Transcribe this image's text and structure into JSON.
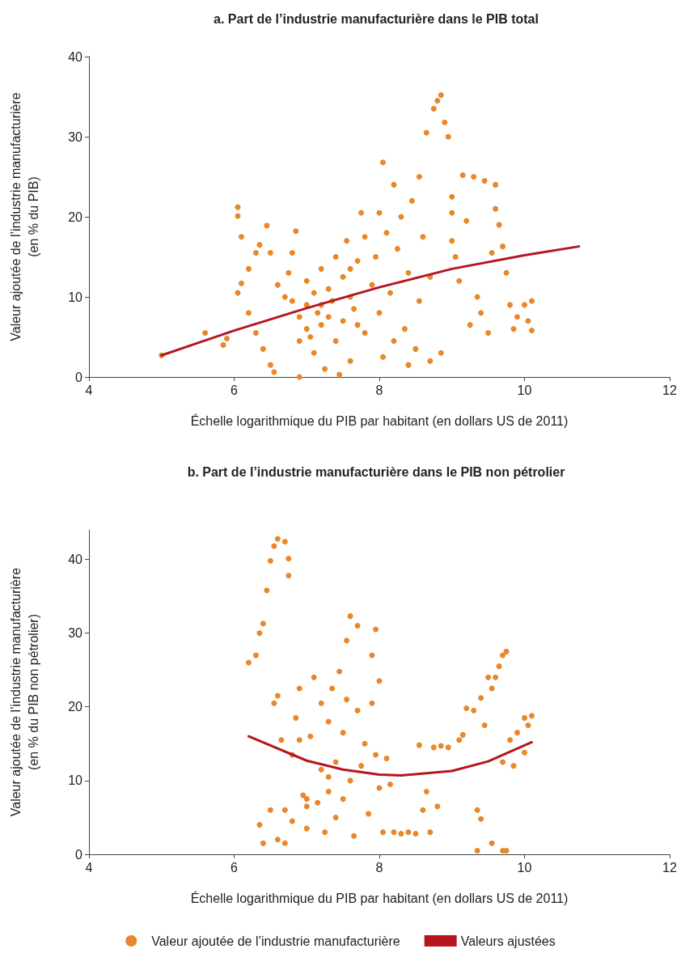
{
  "chart_data": [
    {
      "type": "scatter",
      "title": "a. Part de l’industrie manufacturière dans le PIB total",
      "xlabel": "Échelle logarithmique du PIB par habitant (en dollars US de 2011)",
      "ylabel": "Valeur ajoutée de l’industrie manufacturière\n(en % du PIB)",
      "xlim": [
        4,
        12
      ],
      "xticks": [
        4,
        6,
        8,
        10,
        12
      ],
      "ylim": [
        0,
        40
      ],
      "yticks": [
        0,
        10,
        20,
        30,
        40
      ],
      "grid": false,
      "legend": false,
      "series": [
        {
          "color": "#e8872b",
          "marker": "circle",
          "x": [
            5.0,
            5.6,
            5.85,
            5.9,
            6.05,
            6.05,
            6.1,
            6.05,
            6.1,
            6.2,
            6.3,
            6.35,
            6.45,
            6.5,
            6.2,
            6.3,
            6.4,
            6.5,
            6.55,
            6.6,
            6.7,
            6.75,
            6.8,
            6.85,
            6.9,
            6.9,
            7.0,
            7.0,
            7.05,
            7.1,
            7.1,
            7.15,
            7.2,
            7.2,
            7.25,
            7.3,
            7.35,
            7.4,
            7.4,
            7.45,
            7.5,
            7.5,
            7.55,
            7.6,
            7.6,
            7.65,
            7.7,
            7.75,
            7.8,
            7.8,
            7.9,
            7.95,
            8.0,
            8.0,
            8.05,
            8.1,
            8.15,
            8.2,
            8.25,
            8.3,
            8.35,
            8.4,
            8.45,
            8.5,
            8.55,
            8.55,
            8.6,
            8.65,
            8.7,
            8.75,
            8.8,
            8.85,
            8.9,
            8.95,
            8.7,
            8.85,
            9.0,
            9.0,
            9.05,
            9.1,
            9.15,
            9.2,
            9.3,
            9.35,
            9.4,
            9.45,
            9.5,
            9.55,
            9.6,
            9.6,
            9.65,
            9.7,
            9.75,
            9.8,
            9.85,
            9.9,
            10.0,
            10.05,
            10.1,
            10.1,
            8.05,
            7.2,
            7.3,
            7.0,
            6.8,
            6.9,
            7.6,
            7.7,
            8.2,
            8.4,
            9.25,
            9.0
          ],
          "values": [
            2.7,
            5.5,
            4.0,
            4.8,
            21.2,
            20.1,
            17.5,
            10.5,
            11.7,
            13.5,
            15.5,
            16.5,
            18.9,
            15.5,
            8.0,
            5.5,
            3.5,
            1.5,
            0.6,
            11.5,
            10.0,
            13.0,
            15.5,
            18.2,
            0.0,
            7.5,
            9.0,
            12.0,
            5.0,
            10.5,
            3.0,
            8.0,
            13.5,
            6.5,
            1.0,
            11.0,
            9.5,
            15.0,
            4.5,
            0.3,
            7.0,
            12.5,
            17.0,
            10.0,
            2.0,
            8.5,
            14.5,
            20.5,
            5.5,
            17.5,
            11.5,
            15.0,
            20.5,
            8.0,
            2.5,
            18.0,
            10.5,
            24.0,
            16.0,
            20.0,
            6.0,
            13.0,
            22.0,
            3.5,
            25.0,
            9.5,
            17.5,
            30.5,
            12.5,
            33.5,
            34.5,
            35.2,
            31.8,
            30.0,
            2.0,
            3.0,
            20.5,
            22.5,
            15.0,
            12.0,
            25.2,
            19.5,
            25.0,
            10.0,
            8.0,
            24.5,
            5.5,
            15.5,
            24.0,
            21.0,
            19.0,
            16.3,
            13.0,
            9.0,
            6.0,
            7.5,
            9.0,
            7.0,
            9.5,
            5.8,
            26.8,
            9.0,
            7.5,
            6.0,
            9.5,
            4.5,
            13.5,
            6.5,
            4.5,
            1.5,
            6.5,
            17.0
          ]
        },
        {
          "type": "line",
          "color": "#b5161e",
          "marker": "none",
          "line_style": "solid",
          "x": [
            5.0,
            6.0,
            7.0,
            8.0,
            9.0,
            10.0,
            10.75
          ],
          "values": [
            2.7,
            5.8,
            8.6,
            11.2,
            13.5,
            15.2,
            16.3
          ]
        }
      ]
    },
    {
      "type": "scatter",
      "title": "b. Part de l’industrie manufacturière dans le PIB non pétrolier",
      "xlabel": "Échelle logarithmique du PIB par habitant (en dollars US de 2011)",
      "ylabel": "Valeur ajoutée de l’industrie manufacturière\n(en % du PIB non pétrolier)",
      "xlim": [
        4,
        12
      ],
      "xticks": [
        4,
        6,
        8,
        10,
        12
      ],
      "ylim": [
        0,
        44
      ],
      "yticks": [
        0,
        10,
        20,
        30,
        40
      ],
      "grid": false,
      "legend": "bottom",
      "series": [
        {
          "name": "Valeur ajoutée de l’industrie manufacturière",
          "color": "#e8872b",
          "marker": "circle",
          "x": [
            6.2,
            6.3,
            6.35,
            6.4,
            6.45,
            6.5,
            6.55,
            6.6,
            6.7,
            6.75,
            6.75,
            6.35,
            6.4,
            6.5,
            6.55,
            6.6,
            6.6,
            6.65,
            6.7,
            6.7,
            6.8,
            6.8,
            6.85,
            6.9,
            6.9,
            6.95,
            7.0,
            7.0,
            7.05,
            7.1,
            7.15,
            7.2,
            7.2,
            7.25,
            7.3,
            7.3,
            7.35,
            7.4,
            7.4,
            7.45,
            7.5,
            7.5,
            7.55,
            7.55,
            7.6,
            7.6,
            7.65,
            7.7,
            7.7,
            7.75,
            7.8,
            7.85,
            7.9,
            7.9,
            7.95,
            7.95,
            8.0,
            8.0,
            8.05,
            8.1,
            8.15,
            8.2,
            8.3,
            8.4,
            8.5,
            8.55,
            8.6,
            8.65,
            8.7,
            8.75,
            8.8,
            8.85,
            8.95,
            9.1,
            9.15,
            9.2,
            9.3,
            9.35,
            9.35,
            9.4,
            9.4,
            9.45,
            9.5,
            9.55,
            9.55,
            9.6,
            9.65,
            9.7,
            9.7,
            9.75,
            9.75,
            9.8,
            9.85,
            9.9,
            10.0,
            10.0,
            10.05,
            10.1,
            9.7,
            7.0,
            7.3
          ],
          "values": [
            26.0,
            27.0,
            30.0,
            31.3,
            35.8,
            39.8,
            41.8,
            42.8,
            42.4,
            40.1,
            37.8,
            4.0,
            1.5,
            6.0,
            20.5,
            21.5,
            2.0,
            15.5,
            6.0,
            1.5,
            13.5,
            4.5,
            18.5,
            22.5,
            15.5,
            8.0,
            3.5,
            6.5,
            16.0,
            24.0,
            7.0,
            20.5,
            11.5,
            3.0,
            18.0,
            8.5,
            22.5,
            12.5,
            5.0,
            24.8,
            7.5,
            16.5,
            21.0,
            29.0,
            32.3,
            10.0,
            2.5,
            31.0,
            19.5,
            12.0,
            15.0,
            5.5,
            27.0,
            20.5,
            30.5,
            13.5,
            23.5,
            9.0,
            3.0,
            13.0,
            9.5,
            3.0,
            2.8,
            3.0,
            2.8,
            14.8,
            6.0,
            8.5,
            3.0,
            14.5,
            6.5,
            14.7,
            14.5,
            15.5,
            16.2,
            19.8,
            19.5,
            6.0,
            0.5,
            21.2,
            4.8,
            17.5,
            24.0,
            1.5,
            22.5,
            24.0,
            25.5,
            0.5,
            27.0,
            27.5,
            0.5,
            15.5,
            12.0,
            16.5,
            18.5,
            13.8,
            17.5,
            18.8,
            12.5,
            7.5,
            10.5
          ]
        },
        {
          "type": "line",
          "name": "Valeurs ajustées",
          "color": "#b5161e",
          "marker": "none",
          "line_style": "solid",
          "x": [
            6.2,
            7.0,
            7.5,
            8.0,
            8.3,
            9.0,
            9.5,
            10.1
          ],
          "values": [
            16.0,
            12.7,
            11.5,
            10.8,
            10.7,
            11.3,
            12.6,
            15.2
          ]
        }
      ]
    }
  ]
}
